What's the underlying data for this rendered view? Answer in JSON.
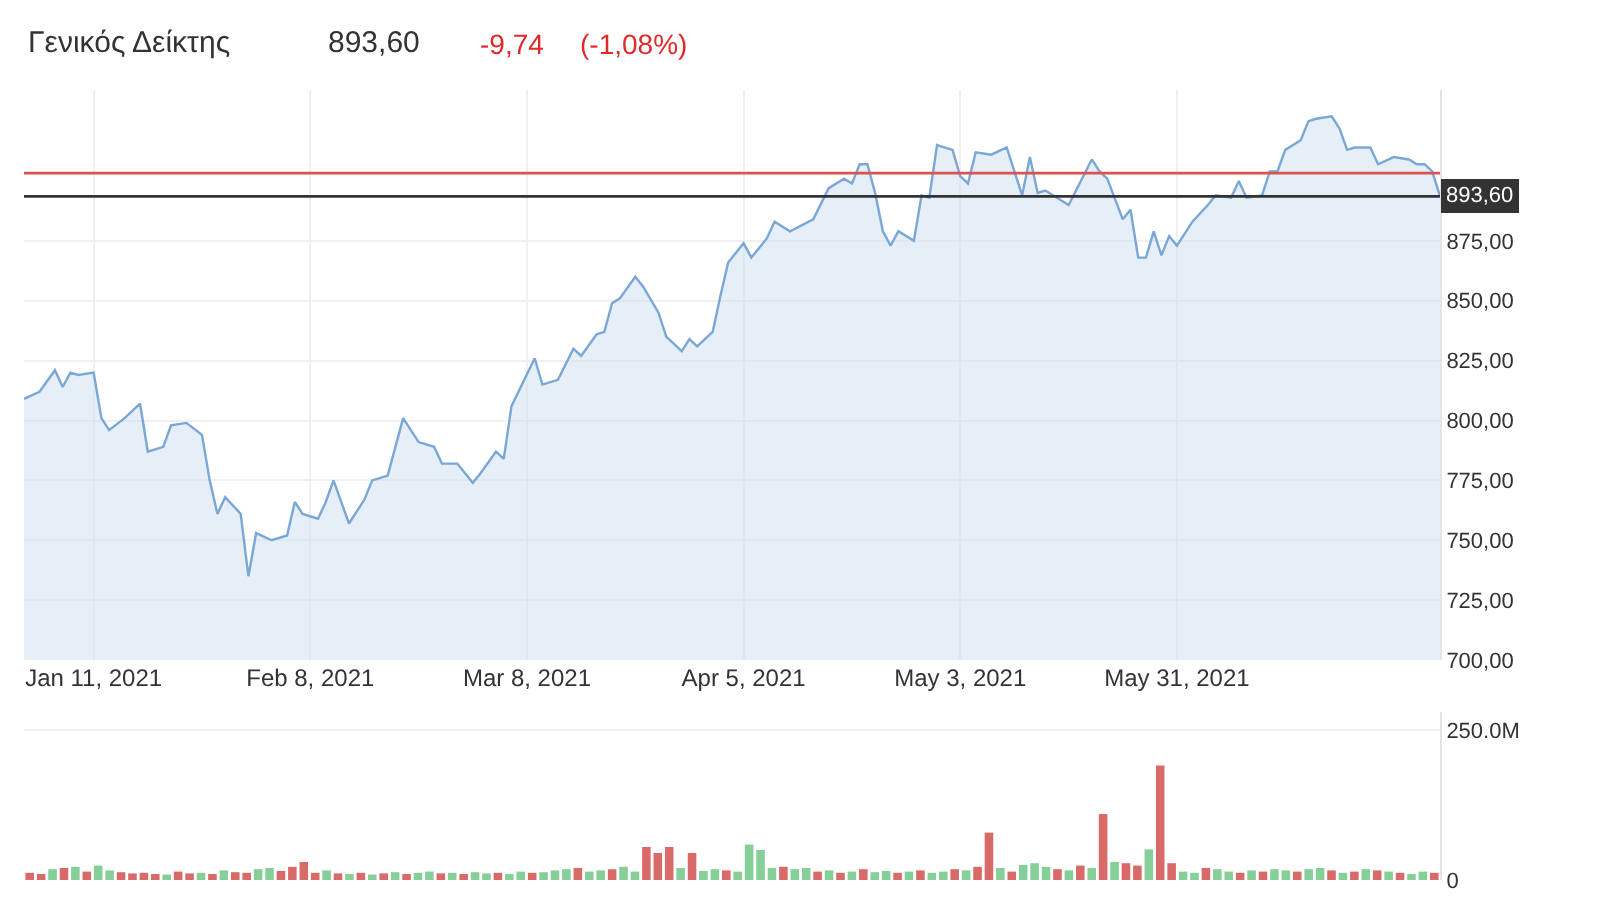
{
  "chart_data": [
    {
      "type": "area",
      "title": "Γενικός Δείκτης",
      "annotations": [
        "893,60",
        "-9,74",
        "(-1,08%)"
      ],
      "x": [
        "2021-01-02",
        "2021-01-04",
        "2021-01-06",
        "2021-01-07",
        "2021-01-08",
        "2021-01-09",
        "2021-01-11",
        "2021-01-12",
        "2021-01-13",
        "2021-01-15",
        "2021-01-17",
        "2021-01-18",
        "2021-01-20",
        "2021-01-21",
        "2021-01-23",
        "2021-01-25",
        "2021-01-26",
        "2021-01-27",
        "2021-01-28",
        "2021-01-30",
        "2021-01-31",
        "2021-02-01",
        "2021-02-03",
        "2021-02-05",
        "2021-02-06",
        "2021-02-07",
        "2021-02-09",
        "2021-02-10",
        "2021-02-11",
        "2021-02-13",
        "2021-02-15",
        "2021-02-16",
        "2021-02-18",
        "2021-02-20",
        "2021-02-22",
        "2021-02-24",
        "2021-02-25",
        "2021-02-27",
        "2021-03-01",
        "2021-03-02",
        "2021-03-04",
        "2021-03-05",
        "2021-03-06",
        "2021-03-09",
        "2021-03-10",
        "2021-03-12",
        "2021-03-14",
        "2021-03-15",
        "2021-03-17",
        "2021-03-18",
        "2021-03-19",
        "2021-03-20",
        "2021-03-22",
        "2021-03-23",
        "2021-03-25",
        "2021-03-26",
        "2021-03-28",
        "2021-03-29",
        "2021-03-30",
        "2021-04-01",
        "2021-04-02",
        "2021-04-03",
        "2021-04-05",
        "2021-04-06",
        "2021-04-08",
        "2021-04-09",
        "2021-04-11",
        "2021-04-14",
        "2021-04-16",
        "2021-04-18",
        "2021-04-19",
        "2021-04-20",
        "2021-04-21",
        "2021-04-22",
        "2021-04-23",
        "2021-04-24",
        "2021-04-25",
        "2021-04-27",
        "2021-04-28",
        "2021-04-29",
        "2021-04-30",
        "2021-05-02",
        "2021-05-03",
        "2021-05-04",
        "2021-05-05",
        "2021-05-07",
        "2021-05-09",
        "2021-05-10",
        "2021-05-11",
        "2021-05-12",
        "2021-05-13",
        "2021-05-14",
        "2021-05-17",
        "2021-05-20",
        "2021-05-21",
        "2021-05-22",
        "2021-05-24",
        "2021-05-25",
        "2021-05-26",
        "2021-05-27",
        "2021-05-28",
        "2021-05-29",
        "2021-05-30",
        "2021-05-31",
        "2021-06-02",
        "2021-06-04",
        "2021-06-05",
        "2021-06-07",
        "2021-06-08",
        "2021-06-09",
        "2021-06-11",
        "2021-06-12",
        "2021-06-13",
        "2021-06-14",
        "2021-06-16",
        "2021-06-17",
        "2021-06-18",
        "2021-06-20",
        "2021-06-21",
        "2021-06-22",
        "2021-06-23",
        "2021-06-25",
        "2021-06-26",
        "2021-06-28",
        "2021-06-30",
        "2021-07-01",
        "2021-07-02",
        "2021-07-03",
        "2021-07-04"
      ],
      "series": [
        {
          "color": "#7aa7d6",
          "values": [
            809,
            812,
            821,
            814,
            820,
            819,
            820,
            801,
            796,
            801,
            807,
            787,
            789,
            798,
            799,
            794,
            775,
            761,
            768,
            761,
            735,
            753,
            750,
            752,
            766,
            761,
            759,
            766,
            775,
            757,
            767,
            775,
            777,
            801,
            791,
            789,
            782,
            782,
            774,
            778,
            787,
            784,
            806,
            826,
            815,
            817,
            830,
            827,
            836,
            837,
            849,
            851,
            860,
            856,
            845,
            835,
            829,
            834,
            831,
            837,
            852,
            866,
            874,
            868,
            876,
            883,
            879,
            884,
            897,
            901,
            899,
            907,
            907,
            895,
            879,
            873,
            879,
            875,
            894,
            893,
            915,
            913,
            902,
            899,
            912,
            911,
            914,
            904,
            894,
            910,
            895,
            896,
            890,
            909,
            904,
            901,
            884,
            888,
            868,
            868,
            879,
            869,
            877,
            873,
            883,
            890,
            894,
            893,
            900,
            893,
            894,
            904,
            904,
            913,
            917,
            925,
            926,
            927,
            922,
            913,
            914,
            914,
            907,
            910,
            909,
            907,
            907,
            904,
            893.6
          ]
        }
      ],
      "xlim": [
        "2021-01-02",
        "2021-07-04"
      ],
      "xticks": [
        {
          "value": "2021-01-11",
          "label": "Jan 11, 2021"
        },
        {
          "value": "2021-02-08",
          "label": "Feb 8, 2021"
        },
        {
          "value": "2021-03-08",
          "label": "Mar 8, 2021"
        },
        {
          "value": "2021-04-05",
          "label": "Apr 5, 2021"
        },
        {
          "value": "2021-05-03",
          "label": "May 3, 2021"
        },
        {
          "value": "2021-05-31",
          "label": "May 31, 2021"
        }
      ],
      "ylim": [
        700,
        938
      ],
      "yticks": [
        {
          "value": 700,
          "label": "700,00"
        },
        {
          "value": 725,
          "label": "725,00"
        },
        {
          "value": 750,
          "label": "750,00"
        },
        {
          "value": 775,
          "label": "775,00"
        },
        {
          "value": 800,
          "label": "800,00"
        },
        {
          "value": 825,
          "label": "825,00"
        },
        {
          "value": 850,
          "label": "850,00"
        },
        {
          "value": 875,
          "label": "875,00"
        }
      ],
      "ref_lines": [
        {
          "axis": "y",
          "value": 903.3,
          "color": "#d9534f"
        },
        {
          "axis": "y",
          "value": 893.6,
          "label": "893,60",
          "color": "#333333"
        }
      ],
      "grid": true,
      "legend": false
    },
    {
      "type": "bar",
      "categories": [
        null,
        null,
        null,
        null,
        null,
        null,
        null,
        null,
        null,
        null,
        null,
        null,
        null,
        null,
        null,
        null,
        null,
        null,
        null,
        null,
        null,
        null,
        null,
        null,
        null,
        null,
        null,
        null,
        null,
        null,
        null,
        null,
        null,
        null,
        null,
        null,
        null,
        null,
        null,
        null,
        null,
        null,
        null,
        null,
        null,
        null,
        null,
        null,
        null,
        null,
        null,
        null,
        null,
        null,
        null,
        null,
        null,
        null,
        null,
        null,
        null,
        null,
        null,
        null,
        null,
        null,
        null,
        null,
        null,
        null,
        null,
        null,
        null,
        null,
        null,
        null,
        null,
        null,
        null,
        null,
        null,
        null,
        null,
        null,
        null,
        null,
        null,
        null,
        null,
        null,
        null,
        null,
        null,
        null,
        null,
        null,
        null,
        null,
        null,
        null,
        null,
        null,
        null,
        null,
        null,
        null,
        null,
        null,
        null,
        null,
        null,
        null,
        null,
        null,
        null,
        null,
        null,
        null,
        null,
        null,
        null,
        null,
        null,
        null
      ],
      "values": [
        12,
        10,
        18,
        20,
        22,
        14,
        24,
        16,
        13,
        11,
        12,
        10,
        9,
        14,
        11,
        12,
        10,
        16,
        13,
        12,
        18,
        20,
        15,
        22,
        30,
        12,
        16,
        11,
        10,
        12,
        9,
        11,
        13,
        10,
        12,
        14,
        11,
        12,
        10,
        13,
        11,
        12,
        10,
        14,
        12,
        13,
        16,
        18,
        20,
        14,
        16,
        18,
        22,
        14,
        55,
        45,
        55,
        20,
        45,
        15,
        18,
        16,
        14,
        59,
        50,
        20,
        22,
        18,
        20,
        14,
        16,
        12,
        14,
        18,
        13,
        15,
        12,
        14,
        16,
        12,
        14,
        18,
        16,
        22,
        79,
        20,
        14,
        25,
        28,
        22,
        18,
        16,
        24,
        20,
        110,
        30,
        28,
        24,
        51,
        191,
        28,
        14,
        12,
        20,
        18,
        14,
        12,
        16,
        14,
        18,
        16,
        14,
        18,
        20,
        16,
        12,
        14,
        18,
        16,
        14,
        12,
        10,
        14,
        12
      ],
      "colors": [
        "#d96a6a",
        "#d96a6a",
        "#86cf98",
        "#d96a6a",
        "#86cf98",
        "#d96a6a",
        "#86cf98",
        "#86cf98",
        "#d96a6a",
        "#d96a6a",
        "#d96a6a",
        "#d96a6a",
        "#86cf98",
        "#d96a6a",
        "#d96a6a",
        "#86cf98",
        "#d96a6a",
        "#86cf98",
        "#d96a6a",
        "#d96a6a",
        "#86cf98",
        "#86cf98",
        "#d96a6a",
        "#d96a6a",
        "#d96a6a",
        "#d96a6a",
        "#86cf98",
        "#d96a6a",
        "#86cf98",
        "#d96a6a",
        "#86cf98",
        "#d96a6a",
        "#86cf98",
        "#d96a6a",
        "#86cf98",
        "#86cf98",
        "#d96a6a",
        "#86cf98",
        "#d96a6a",
        "#86cf98",
        "#86cf98",
        "#d96a6a",
        "#86cf98",
        "#86cf98",
        "#d96a6a",
        "#86cf98",
        "#86cf98",
        "#86cf98",
        "#d96a6a",
        "#86cf98",
        "#86cf98",
        "#d96a6a",
        "#86cf98",
        "#86cf98",
        "#d96a6a",
        "#d96a6a",
        "#d96a6a",
        "#86cf98",
        "#d96a6a",
        "#86cf98",
        "#86cf98",
        "#d96a6a",
        "#86cf98",
        "#86cf98",
        "#86cf98",
        "#86cf98",
        "#d96a6a",
        "#86cf98",
        "#86cf98",
        "#d96a6a",
        "#86cf98",
        "#d96a6a",
        "#86cf98",
        "#d96a6a",
        "#86cf98",
        "#86cf98",
        "#d96a6a",
        "#86cf98",
        "#d96a6a",
        "#86cf98",
        "#86cf98",
        "#d96a6a",
        "#86cf98",
        "#d96a6a",
        "#d96a6a",
        "#86cf98",
        "#d96a6a",
        "#86cf98",
        "#86cf98",
        "#86cf98",
        "#d96a6a",
        "#86cf98",
        "#d96a6a",
        "#86cf98",
        "#d96a6a",
        "#86cf98",
        "#d96a6a",
        "#d96a6a",
        "#86cf98",
        "#d96a6a",
        "#d96a6a",
        "#86cf98",
        "#86cf98",
        "#d96a6a",
        "#86cf98",
        "#86cf98",
        "#d96a6a",
        "#86cf98",
        "#d96a6a",
        "#86cf98",
        "#86cf98",
        "#d96a6a",
        "#86cf98",
        "#86cf98",
        "#d96a6a",
        "#86cf98",
        "#d96a6a",
        "#86cf98",
        "#d96a6a",
        "#86cf98",
        "#d96a6a",
        "#86cf98",
        "#86cf98",
        "#d96a6a"
      ],
      "ylim": [
        0,
        280
      ],
      "yticks": [
        {
          "value": 0,
          "label": "0"
        },
        {
          "value": 250,
          "label": "250.0M"
        }
      ],
      "grid": "y",
      "legend": false
    }
  ]
}
